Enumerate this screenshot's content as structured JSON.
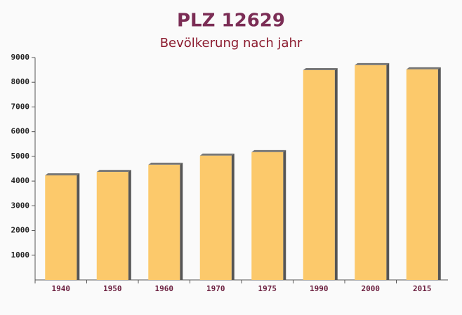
{
  "chart_data": {
    "type": "bar",
    "title": "PLZ 12629",
    "subtitle": "Bevölkerung nach jahr",
    "categories": [
      "1940",
      "1950",
      "1960",
      "1970",
      "1975",
      "1990",
      "2000",
      "2015"
    ],
    "values": [
      4230,
      4370,
      4660,
      5030,
      5170,
      8490,
      8690,
      8520
    ],
    "color": "#fcc96b",
    "ylim": [
      0,
      9000
    ],
    "yticks": [
      1000,
      2000,
      3000,
      4000,
      5000,
      6000,
      7000,
      8000,
      9000
    ]
  }
}
